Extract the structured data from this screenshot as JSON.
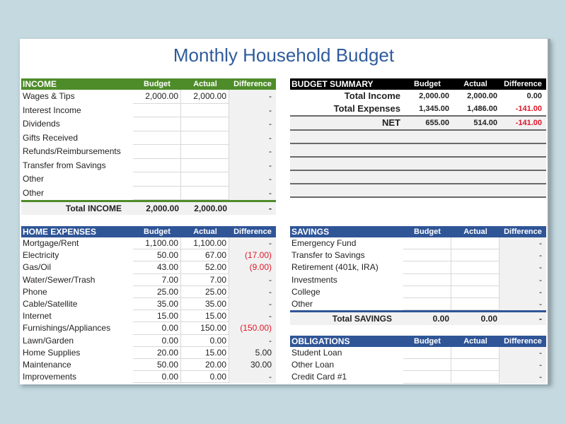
{
  "title": "Monthly Household Budget",
  "columns": {
    "budget": "Budget",
    "actual": "Actual",
    "difference": "Difference"
  },
  "colors": {
    "income_header": "#4e8c2a",
    "expense_header": "#2f5597",
    "summary_header": "#000000",
    "negative": "#e0182a",
    "title": "#2f5c9c"
  },
  "income": {
    "label": "INCOME",
    "rows": [
      {
        "name": "Wages & Tips",
        "budget": "2,000.00",
        "actual": "2,000.00",
        "diff": "-"
      },
      {
        "name": "Interest Income",
        "budget": "",
        "actual": "",
        "diff": "-"
      },
      {
        "name": "Dividends",
        "budget": "",
        "actual": "",
        "diff": "-"
      },
      {
        "name": "Gifts Received",
        "budget": "",
        "actual": "",
        "diff": "-"
      },
      {
        "name": "Refunds/Reimbursements",
        "budget": "",
        "actual": "",
        "diff": "-"
      },
      {
        "name": "Transfer from Savings",
        "budget": "",
        "actual": "",
        "diff": "-"
      },
      {
        "name": "Other",
        "budget": "",
        "actual": "",
        "diff": "-"
      },
      {
        "name": "Other",
        "budget": "",
        "actual": "",
        "diff": "-"
      }
    ],
    "total": {
      "name": "Total INCOME",
      "budget": "2,000.00",
      "actual": "2,000.00",
      "diff": "-"
    }
  },
  "home_expenses": {
    "label": "HOME EXPENSES",
    "rows": [
      {
        "name": "Mortgage/Rent",
        "budget": "1,100.00",
        "actual": "1,100.00",
        "diff": "-"
      },
      {
        "name": "Electricity",
        "budget": "50.00",
        "actual": "67.00",
        "diff": "(17.00)"
      },
      {
        "name": "Gas/Oil",
        "budget": "43.00",
        "actual": "52.00",
        "diff": "(9.00)"
      },
      {
        "name": "Water/Sewer/Trash",
        "budget": "7.00",
        "actual": "7.00",
        "diff": "-"
      },
      {
        "name": "Phone",
        "budget": "25.00",
        "actual": "25.00",
        "diff": "-"
      },
      {
        "name": "Cable/Satellite",
        "budget": "35.00",
        "actual": "35.00",
        "diff": "-"
      },
      {
        "name": "Internet",
        "budget": "15.00",
        "actual": "15.00",
        "diff": "-"
      },
      {
        "name": "Furnishings/Appliances",
        "budget": "0.00",
        "actual": "150.00",
        "diff": "(150.00)"
      },
      {
        "name": "Lawn/Garden",
        "budget": "0.00",
        "actual": "0.00",
        "diff": "-"
      },
      {
        "name": "Home Supplies",
        "budget": "20.00",
        "actual": "15.00",
        "diff": "5.00"
      },
      {
        "name": "Maintenance",
        "budget": "50.00",
        "actual": "20.00",
        "diff": "30.00"
      },
      {
        "name": "Improvements",
        "budget": "0.00",
        "actual": "0.00",
        "diff": "-"
      }
    ]
  },
  "summary": {
    "label": "BUDGET SUMMARY",
    "rows": [
      {
        "name": "Total Income",
        "budget": "2,000.00",
        "actual": "2,000.00",
        "diff": "0.00"
      },
      {
        "name": "Total Expenses",
        "budget": "1,345.00",
        "actual": "1,486.00",
        "diff": "-141.00"
      },
      {
        "name": "NET",
        "budget": "655.00",
        "actual": "514.00",
        "diff": "-141.00"
      }
    ]
  },
  "savings": {
    "label": "SAVINGS",
    "rows": [
      {
        "name": "Emergency Fund",
        "budget": "",
        "actual": "",
        "diff": "-"
      },
      {
        "name": "Transfer to Savings",
        "budget": "",
        "actual": "",
        "diff": "-"
      },
      {
        "name": "Retirement (401k, IRA)",
        "budget": "",
        "actual": "",
        "diff": "-"
      },
      {
        "name": "Investments",
        "budget": "",
        "actual": "",
        "diff": "-"
      },
      {
        "name": "College",
        "budget": "",
        "actual": "",
        "diff": "-"
      },
      {
        "name": "Other",
        "budget": "",
        "actual": "",
        "diff": "-"
      }
    ],
    "total": {
      "name": "Total SAVINGS",
      "budget": "0.00",
      "actual": "0.00",
      "diff": "-"
    }
  },
  "obligations": {
    "label": "OBLIGATIONS",
    "rows": [
      {
        "name": "Student Loan",
        "budget": "",
        "actual": "",
        "diff": "-"
      },
      {
        "name": "Other Loan",
        "budget": "",
        "actual": "",
        "diff": "-"
      },
      {
        "name": "Credit Card #1",
        "budget": "",
        "actual": "",
        "diff": "-"
      }
    ]
  }
}
